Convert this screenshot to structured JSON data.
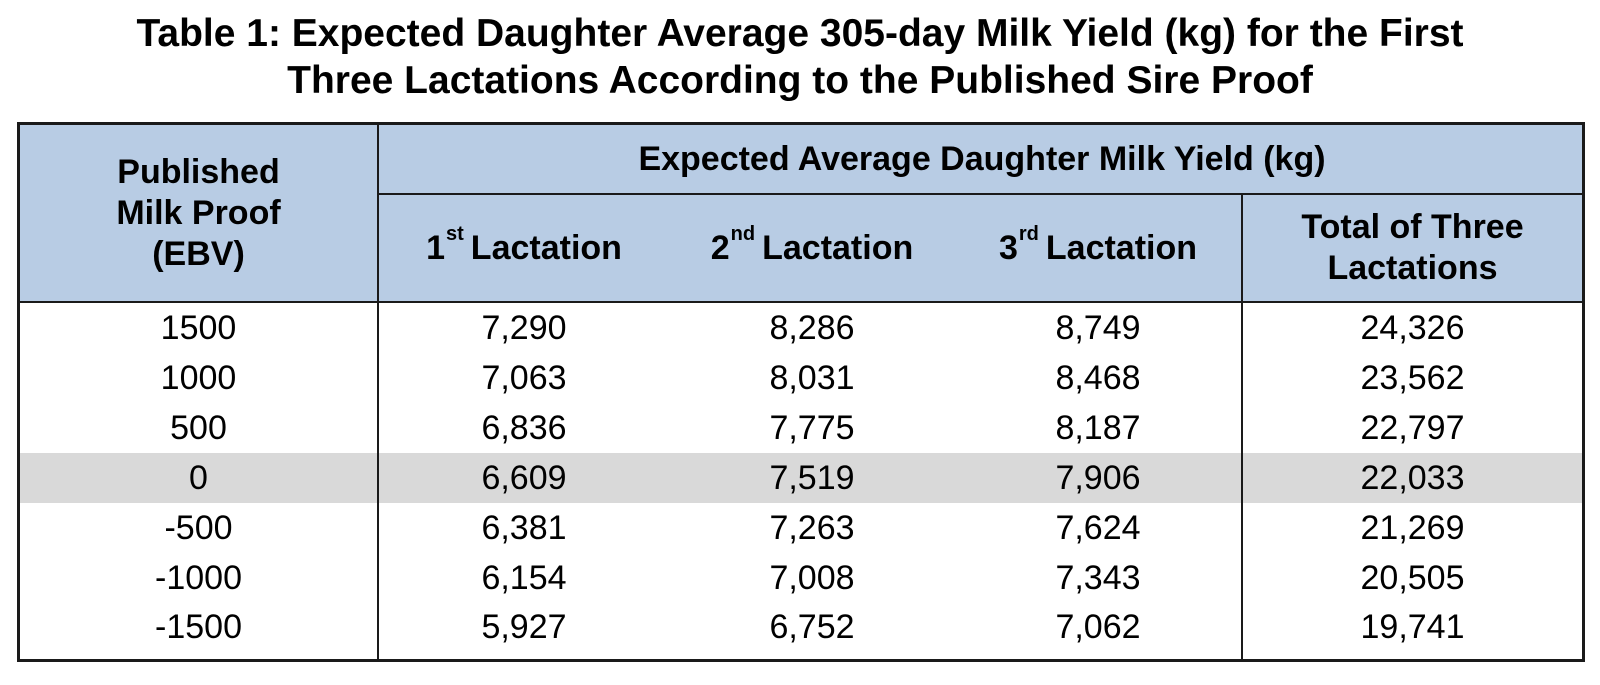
{
  "title": {
    "line1": "Table 1: Expected Daughter Average 305-day Milk Yield (kg) for the First",
    "line2": "Three Lactations According to the Published Sire Proof"
  },
  "header": {
    "proof": {
      "line1": "Published",
      "line2": "Milk Proof",
      "line3": "(EBV)"
    },
    "group_label": "Expected Average Daughter Milk Yield (kg)",
    "columns": [
      {
        "num": "1",
        "suffix": "st",
        "label": "Lactation"
      },
      {
        "num": "2",
        "suffix": "nd",
        "label": "Lactation"
      },
      {
        "num": "3",
        "suffix": "rd",
        "label": "Lactation"
      }
    ],
    "total": {
      "line1": "Total of Three",
      "line2": "Lactations"
    }
  },
  "rows": [
    {
      "proof": "1500",
      "c1": "7,290",
      "c2": "8,286",
      "c3": "8,749",
      "total": "24,326"
    },
    {
      "proof": "1000",
      "c1": "7,063",
      "c2": "8,031",
      "c3": "8,468",
      "total": "23,562"
    },
    {
      "proof": "500",
      "c1": "6,836",
      "c2": "7,775",
      "c3": "8,187",
      "total": "22,797"
    },
    {
      "proof": "0",
      "c1": "6,609",
      "c2": "7,519",
      "c3": "7,906",
      "total": "22,033"
    },
    {
      "proof": "-500",
      "c1": "6,381",
      "c2": "7,263",
      "c3": "7,624",
      "total": "21,269"
    },
    {
      "proof": "-1000",
      "c1": "6,154",
      "c2": "7,008",
      "c3": "7,343",
      "total": "20,505"
    },
    {
      "proof": "-1500",
      "c1": "5,927",
      "c2": "6,752",
      "c3": "7,062",
      "total": "19,741"
    }
  ],
  "colors": {
    "header_bg": "#b8cce4",
    "highlight_row_bg": "#d9d9d9",
    "border": "#1a1a1a"
  },
  "highlighted_row": 3
}
